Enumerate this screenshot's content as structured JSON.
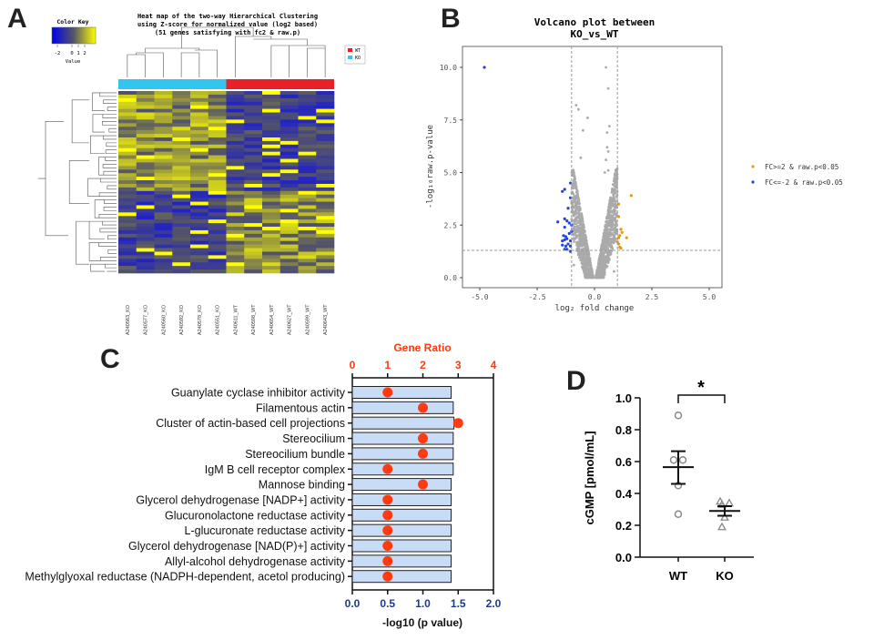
{
  "panels": {
    "a": "A",
    "b": "B",
    "c": "C",
    "d": "D"
  },
  "chart_data": [
    {
      "type": "heatmap",
      "title": [
        "Heat map of the two-way Hierarchical Clustering",
        "using Z-score for normalized value (log2 based)",
        "(51 genes satisfying with fc2 & raw.p)"
      ],
      "color_key": {
        "title": "Color Key",
        "ticks": [
          "-2",
          "0",
          "1",
          "2"
        ],
        "xlabel": "Value",
        "low_color": "#0000ee",
        "mid_color": "#555566",
        "high_color": "#ffff00"
      },
      "legend": [
        {
          "label": "WT",
          "color": "#e8202a"
        },
        {
          "label": "KO",
          "color": "#33c4f0"
        }
      ],
      "columns": [
        "A240563_KO",
        "A240577_KO",
        "A240560_KO",
        "A240592_KO",
        "A240578_KO",
        "A240551_KO",
        "A240611_WT",
        "A240598_WT",
        "A240654_WT",
        "A240627_WT",
        "A240599_WT",
        "A240643_WT"
      ],
      "row_count": 51
    },
    {
      "type": "scatter",
      "title": [
        "Volcano plot between",
        "KO_vs_WT"
      ],
      "xlabel": "log₂ fold change",
      "ylabel": "-log₁₀raw.p-value",
      "xlim": [
        -5.5,
        5.5
      ],
      "ylim": [
        -0.5,
        11
      ],
      "xticks": [
        "-5.0",
        "-2.5",
        "0.0",
        "2.5",
        "5.0"
      ],
      "yticks": [
        "0.0",
        "2.5",
        "5.0",
        "7.5",
        "10.0"
      ],
      "thresholds": {
        "fc": [
          -1,
          1
        ],
        "p": 1.3
      },
      "legend": [
        {
          "label": "FC>=2 & raw.p<0.05",
          "color": "#e09a10"
        },
        {
          "label": "FC<=-2 & raw.p<0.05",
          "color": "#2244dd"
        }
      ],
      "gray_color": "#aaaaaa",
      "up": [
        [
          1.05,
          3.5
        ],
        [
          1.05,
          2.9
        ],
        [
          1.6,
          3.9
        ],
        [
          1.15,
          2.3
        ],
        [
          1.2,
          2.15
        ],
        [
          1.1,
          2.0
        ],
        [
          1.05,
          1.9
        ],
        [
          1.4,
          1.9
        ],
        [
          1.05,
          1.6
        ],
        [
          1.1,
          1.45
        ],
        [
          1.15,
          1.4
        ],
        [
          1.0,
          1.7
        ]
      ],
      "down": [
        [
          -4.8,
          10.0
        ],
        [
          -1.05,
          4.5
        ],
        [
          -1.4,
          4.1
        ],
        [
          -1.3,
          4.2
        ],
        [
          -1.05,
          3.8
        ],
        [
          -1.15,
          3.3
        ],
        [
          -1.6,
          2.65
        ],
        [
          -1.3,
          2.8
        ],
        [
          -1.2,
          2.7
        ],
        [
          -1.1,
          2.6
        ],
        [
          -1.3,
          2.4
        ],
        [
          -1.0,
          2.5
        ],
        [
          -1.1,
          2.1
        ],
        [
          -1.25,
          1.95
        ],
        [
          -1.4,
          1.75
        ],
        [
          -1.3,
          1.8
        ],
        [
          -1.2,
          1.85
        ],
        [
          -1.05,
          1.75
        ],
        [
          -1.15,
          1.6
        ],
        [
          -1.4,
          1.55
        ],
        [
          -1.25,
          1.5
        ],
        [
          -1.05,
          1.5
        ],
        [
          -1.3,
          1.35
        ],
        [
          -1.2,
          1.35
        ],
        [
          -1.05,
          1.25
        ],
        [
          -1.35,
          2.0
        ],
        [
          -1.0,
          2.2
        ]
      ],
      "gray_outliers": [
        [
          0.5,
          10
        ],
        [
          0.6,
          9
        ],
        [
          -0.8,
          8.2
        ],
        [
          -0.7,
          8.0
        ],
        [
          -0.3,
          7.6
        ],
        [
          0.65,
          7.2
        ],
        [
          0.55,
          6.9
        ],
        [
          -0.5,
          7.0
        ],
        [
          0.55,
          6.2
        ],
        [
          0.6,
          6.0
        ],
        [
          0.5,
          5.6
        ],
        [
          -0.6,
          5.7
        ],
        [
          0.45,
          5.0
        ],
        [
          0.6,
          5.1
        ],
        [
          0.9,
          3.5
        ],
        [
          -0.9,
          0.6
        ],
        [
          0.85,
          0.3
        ]
      ]
    },
    {
      "type": "bar",
      "orientation": "horizontal",
      "categories": [
        "Guanylate cyclase inhibitor activity",
        "Filamentous actin",
        "Cluster of actin-based cell projections",
        "Stereocilium",
        "Stereocilium bundle",
        "IgM B cell receptor complex",
        "Mannose binding",
        "Glycerol dehydrogenase [NADP+] activity",
        "Glucuronolactone reductase activity",
        "L-glucuronate reductase activity",
        "Glycerol dehydrogenase [NAD(P)+] activity",
        "Allyl-alcohol dehydrogenase activity",
        "Methylglyoxal reductase (NADPH-dependent, acetol producing)"
      ],
      "values": [
        1.4,
        1.43,
        1.44,
        1.43,
        1.43,
        1.43,
        1.4,
        1.4,
        1.4,
        1.4,
        1.4,
        1.4,
        1.4
      ],
      "gene_ratio": [
        1,
        2,
        3,
        2,
        2,
        1,
        2,
        1,
        1,
        1,
        1,
        1,
        1
      ],
      "xlabel": "-log10 (p value)",
      "xlim": [
        0,
        2
      ],
      "xticks": [
        "0.0",
        "0.5",
        "1.0",
        "1.5",
        "2.0"
      ],
      "top_xlabel": "Gene Ratio",
      "top_xlim": [
        0,
        4
      ],
      "top_xticks": [
        "0",
        "1",
        "2",
        "3",
        "4"
      ],
      "bar_color": "#c8dcf5",
      "dot_color": "#ff3a10",
      "top_axis_color": "#ff3a10",
      "bottom_tick_color": "#1a3a8a"
    },
    {
      "type": "scatter",
      "categories": [
        "WT",
        "KO"
      ],
      "ylabel": "cGMP [pmol/mL]",
      "ylim": [
        0,
        1.0
      ],
      "yticks": [
        "0.0",
        "0.2",
        "0.4",
        "0.6",
        "0.8",
        "1.0"
      ],
      "series": [
        {
          "name": "WT",
          "marker": "circle",
          "values": [
            0.89,
            0.61,
            0.61,
            0.45,
            0.27
          ],
          "mean": 0.565,
          "sem": [
            0.46,
            0.665
          ]
        },
        {
          "name": "KO",
          "marker": "triangle",
          "values": [
            0.35,
            0.33,
            0.34,
            0.25,
            0.19
          ],
          "mean": 0.29,
          "sem": [
            0.26,
            0.32
          ]
        }
      ],
      "significance": "*"
    }
  ]
}
